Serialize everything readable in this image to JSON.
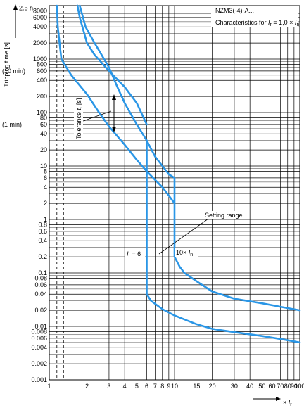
{
  "chart_data": {
    "type": "line",
    "title": "NZM3(-4)-A...",
    "subtitle": "Characteristics for Ir = 1,0 × In",
    "subtitle_parts": {
      "prefix": "Characteristics for ",
      "var1": "I",
      "sub1": "r",
      "mid": " = 1,0 × ",
      "var2": "I",
      "sub2": "n"
    },
    "ylabel": "Tripping time [s]",
    "xlabel": "× Ir",
    "xlabel_parts": {
      "prefix": "× ",
      "var": "I",
      "sub": "r"
    },
    "x_scale": "log",
    "y_scale": "log",
    "xlim": [
      1,
      100
    ],
    "ylim": [
      0.001,
      10000
    ],
    "grid": true,
    "x_ticks": [
      {
        "v": 1,
        "label": "1"
      },
      {
        "v": 2,
        "label": "2"
      },
      {
        "v": 3,
        "label": "3"
      },
      {
        "v": 4,
        "label": "4"
      },
      {
        "v": 5,
        "label": "5"
      },
      {
        "v": 6,
        "label": "6"
      },
      {
        "v": 7,
        "label": "7"
      },
      {
        "v": 8,
        "label": "8"
      },
      {
        "v": 9,
        "label": "9"
      },
      {
        "v": 10,
        "label": "10"
      },
      {
        "v": 15,
        "label": "15"
      },
      {
        "v": 20,
        "label": "20"
      },
      {
        "v": 30,
        "label": "30"
      },
      {
        "v": 40,
        "label": "40"
      },
      {
        "v": 50,
        "label": "50"
      },
      {
        "v": 60,
        "label": "60"
      },
      {
        "v": 70,
        "label": "70"
      },
      {
        "v": 80,
        "label": "80"
      },
      {
        "v": 90,
        "label": "90"
      },
      {
        "v": 100,
        "label": "100"
      }
    ],
    "y_ticks": [
      {
        "v": 8000,
        "label": "8000"
      },
      {
        "v": 6000,
        "label": "6000"
      },
      {
        "v": 4000,
        "label": "4000"
      },
      {
        "v": 2000,
        "label": "2000"
      },
      {
        "v": 1000,
        "label": "1000"
      },
      {
        "v": 800,
        "label": "800"
      },
      {
        "v": 600,
        "label": "600"
      },
      {
        "v": 400,
        "label": "400"
      },
      {
        "v": 200,
        "label": "200"
      },
      {
        "v": 100,
        "label": "100"
      },
      {
        "v": 80,
        "label": "80"
      },
      {
        "v": 60,
        "label": "60"
      },
      {
        "v": 40,
        "label": "40"
      },
      {
        "v": 20,
        "label": "20"
      },
      {
        "v": 10,
        "label": "10"
      },
      {
        "v": 8,
        "label": "8"
      },
      {
        "v": 6,
        "label": "6"
      },
      {
        "v": 4,
        "label": "4"
      },
      {
        "v": 2,
        "label": "2"
      },
      {
        "v": 1,
        "label": "1"
      },
      {
        "v": 0.8,
        "label": "0.8"
      },
      {
        "v": 0.6,
        "label": "0.6"
      },
      {
        "v": 0.4,
        "label": "0.4"
      },
      {
        "v": 0.2,
        "label": "0.2"
      },
      {
        "v": 0.1,
        "label": "0.1"
      },
      {
        "v": 0.08,
        "label": "0.08"
      },
      {
        "v": 0.06,
        "label": "0.06"
      },
      {
        "v": 0.04,
        "label": "0.04"
      },
      {
        "v": 0.02,
        "label": "0.02"
      },
      {
        "v": 0.01,
        "label": "0.01"
      },
      {
        "v": 0.008,
        "label": "0.008"
      },
      {
        "v": 0.006,
        "label": "0.006"
      },
      {
        "v": 0.004,
        "label": "0.004"
      },
      {
        "v": 0.002,
        "label": "0.002"
      },
      {
        "v": 0.001,
        "label": "0.001"
      }
    ],
    "extra_y_labels": [
      {
        "v": 9000,
        "label": "2.5 h"
      },
      {
        "v": 600,
        "label": "(10 min)"
      },
      {
        "v": 60,
        "label": "(1 min)"
      }
    ],
    "extra_x_gridlines": [
      1.15,
      1.3
    ],
    "series": [
      {
        "name": "",
        "points": [
          [
            1.27,
            10000
          ],
          [
            1.3,
            6000
          ],
          [
            1.38,
            2000
          ],
          [
            1.5,
            1000
          ],
          [
            1.8,
            500
          ],
          [
            2.3,
            250
          ],
          [
            3,
            120
          ],
          [
            4,
            60
          ],
          [
            5,
            30
          ],
          [
            6,
            18
          ],
          [
            7,
            12
          ],
          [
            8,
            9
          ],
          [
            9,
            7
          ],
          [
            10,
            6
          ],
          [
            10,
            0.2
          ],
          [
            11,
            0.13
          ],
          [
            12,
            0.1
          ],
          [
            15,
            0.07
          ],
          [
            20,
            0.045
          ],
          [
            30,
            0.033
          ],
          [
            50,
            0.027
          ],
          [
            80,
            0.022
          ],
          [
            100,
            0.02
          ]
        ],
        "color": "#1e90e0"
      },
      {
        "name": "",
        "points": [
          [
            1.68,
            10000
          ],
          [
            1.75,
            6000
          ],
          [
            2,
            2000
          ],
          [
            2.3,
            1200
          ],
          [
            3,
            600
          ],
          [
            4,
            300
          ],
          [
            5,
            150
          ],
          [
            6,
            60
          ],
          [
            7,
            30
          ],
          [
            8,
            15
          ],
          [
            9,
            10
          ],
          [
            10,
            6.5
          ],
          [
            10,
            0.2
          ],
          [
            6,
            0.2
          ],
          [
            6,
            6.5
          ],
          [
            6,
            8
          ],
          [
            5,
            14
          ],
          [
            4,
            24
          ],
          [
            3,
            45
          ],
          [
            2.5,
            80
          ],
          [
            2,
            150
          ],
          [
            1.5,
            400
          ],
          [
            1.25,
            1000
          ],
          [
            1.18,
            2000
          ],
          [
            1.12,
            6000
          ],
          [
            1.1,
            10000
          ]
        ],
        "drop_6": [
          [
            6,
            0.04
          ],
          [
            6.5,
            0.03
          ],
          [
            8,
            0.021
          ],
          [
            10,
            0.016
          ],
          [
            15,
            0.011
          ],
          [
            20,
            0.009
          ],
          [
            30,
            0.0078
          ],
          [
            50,
            0.0066
          ],
          [
            80,
            0.0055
          ],
          [
            100,
            0.005
          ]
        ],
        "color": "#1e90e0"
      }
    ],
    "curve_upper": [
      [
        1.15,
        10000
      ],
      [
        1.17,
        4000
      ],
      [
        1.25,
        1000
      ],
      [
        1.5,
        500
      ],
      [
        2,
        220
      ],
      [
        2.5,
        100
      ],
      [
        3,
        55
      ],
      [
        4,
        25
      ],
      [
        5,
        13
      ],
      [
        6,
        8
      ],
      [
        7,
        5.5
      ],
      [
        8,
        4
      ],
      [
        9,
        2.8
      ],
      [
        10,
        2
      ],
      [
        10,
        0.2
      ],
      [
        11,
        0.13
      ],
      [
        12,
        0.1
      ],
      [
        15,
        0.07
      ],
      [
        20,
        0.045
      ],
      [
        30,
        0.033
      ],
      [
        50,
        0.027
      ],
      [
        80,
        0.022
      ],
      [
        100,
        0.02
      ]
    ],
    "curve_lower": [
      [
        1.75,
        10000
      ],
      [
        1.95,
        4000
      ],
      [
        2.3,
        2000
      ],
      [
        3,
        700
      ],
      [
        3.5,
        300
      ],
      [
        4,
        150
      ],
      [
        5,
        60
      ],
      [
        6,
        30
      ],
      [
        7,
        15
      ],
      [
        8,
        10
      ],
      [
        9,
        7
      ],
      [
        10,
        6
      ],
      [
        10,
        2
      ]
    ],
    "curve_tail": [
      [
        6,
        0.2
      ],
      [
        6,
        0.04
      ],
      [
        6.5,
        0.03
      ],
      [
        8,
        0.021
      ],
      [
        10,
        0.016
      ],
      [
        15,
        0.011
      ],
      [
        20,
        0.009
      ],
      [
        30,
        0.0078
      ],
      [
        50,
        0.0066
      ],
      [
        80,
        0.0055
      ],
      [
        100,
        0.005
      ]
    ],
    "curve_connector": [
      [
        6,
        30
      ],
      [
        6,
        0.2
      ]
    ],
    "annotations": {
      "tolerance": "Tolerance tr [s]",
      "tolerance_parts": {
        "prefix": "Tolerance ",
        "var": "t",
        "sub": "r",
        "suffix": " [s]"
      },
      "setting_range": "Setting range",
      "ir6_parts": {
        "var": "I",
        "sub": "r",
        "suffix": " = 6"
      },
      "ten_in_parts": {
        "prefix": "10× ",
        "var": "I",
        "sub": "n"
      }
    }
  }
}
